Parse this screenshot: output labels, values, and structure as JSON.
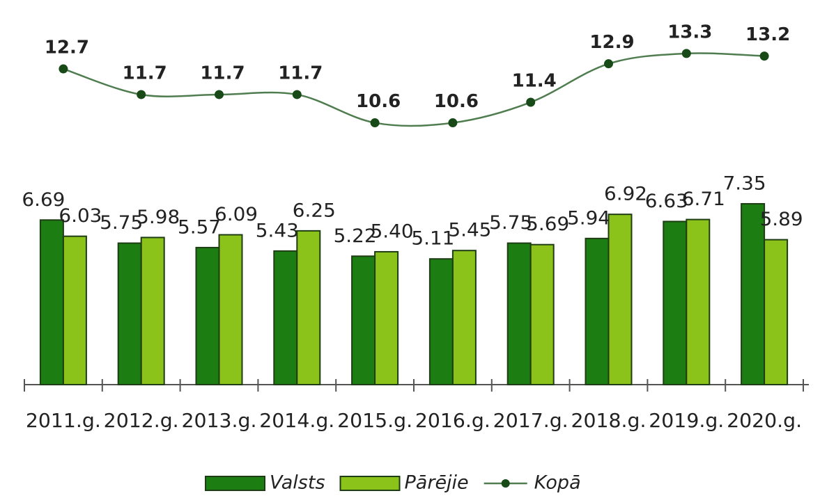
{
  "chart_data": {
    "type": "bar-line",
    "categories": [
      "2011.g.",
      "2012.g.",
      "2013.g.",
      "2014.g.",
      "2015.g.",
      "2016.g.",
      "2017.g.",
      "2018.g.",
      "2019.g.",
      "2020.g."
    ],
    "series": [
      {
        "name": "Valsts",
        "type": "bar",
        "color": "#1b7d12",
        "values": [
          6.69,
          5.75,
          5.57,
          5.43,
          5.22,
          5.11,
          5.75,
          5.94,
          6.63,
          7.35
        ],
        "value_labels": [
          "6.69",
          "5.75",
          "5.57",
          "5.43",
          "5.22",
          "5.11",
          "5.75",
          "5.94",
          "6.63",
          "7.35"
        ]
      },
      {
        "name": "Pārējie",
        "type": "bar",
        "color": "#8cc31a",
        "values": [
          6.03,
          5.98,
          6.09,
          6.25,
          5.4,
          5.45,
          5.69,
          6.92,
          6.71,
          5.89
        ],
        "value_labels": [
          "6.03",
          "5.98",
          "6.09",
          "6.25",
          "5.40",
          "5.45",
          "5.69",
          "6.92",
          "6.71",
          "5.89"
        ]
      },
      {
        "name": "Kopā",
        "type": "line",
        "axis": "y2",
        "color": "#4f7d4f",
        "values": [
          12.7,
          11.7,
          11.7,
          11.7,
          10.6,
          10.6,
          11.4,
          12.9,
          13.3,
          13.2
        ],
        "value_labels": [
          "12.7",
          "11.7",
          "11.7",
          "11.7",
          "10.6",
          "10.6",
          "11.4",
          "12.9",
          "13.3",
          "13.2"
        ]
      }
    ],
    "ylim": [
      0,
      14.5
    ],
    "y2lim": [
      0.4,
      14.3
    ],
    "legend": "bottom"
  }
}
